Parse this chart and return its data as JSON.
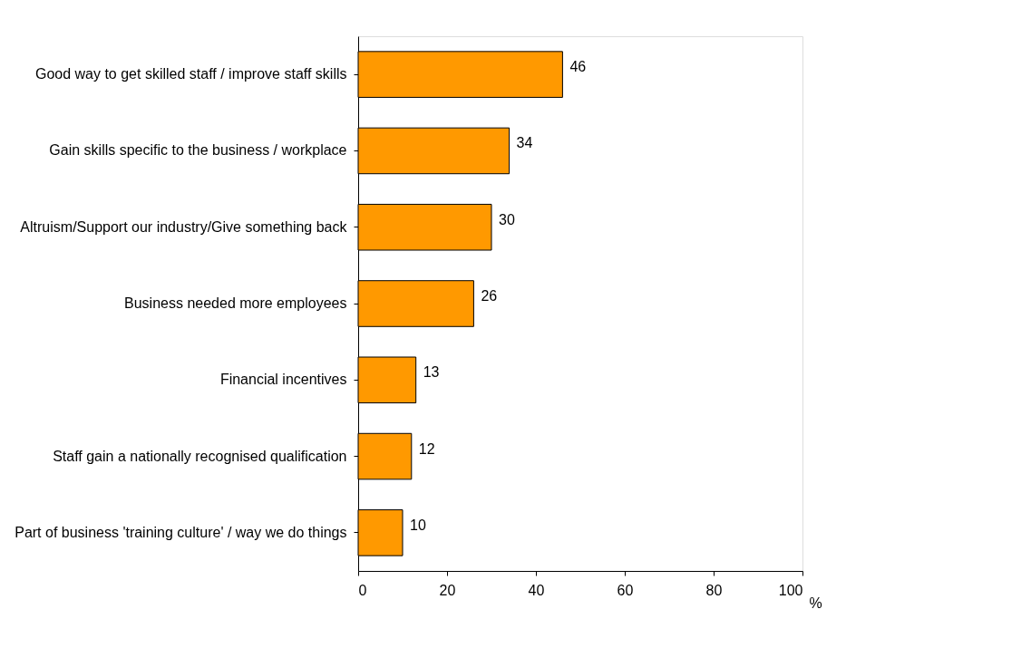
{
  "chart_data": {
    "type": "bar",
    "orientation": "horizontal",
    "xlabel": "%",
    "categories": [
      "Good way to get skilled staff / improve staff skills",
      "Gain skills specific to the business / workplace",
      "Altruism/Support our industry/Give something back",
      "Business needed more employees",
      "Financial incentives",
      "Staff gain a nationally recognised qualification",
      "Part of business 'training culture' / way we do things"
    ],
    "values": [
      46,
      34,
      30,
      26,
      13,
      12,
      10
    ],
    "color": "#ff9900",
    "xlim": [
      0,
      100
    ],
    "xticks": [
      0,
      20,
      40,
      60,
      80,
      100
    ],
    "data_labels": true,
    "grid": false
  }
}
